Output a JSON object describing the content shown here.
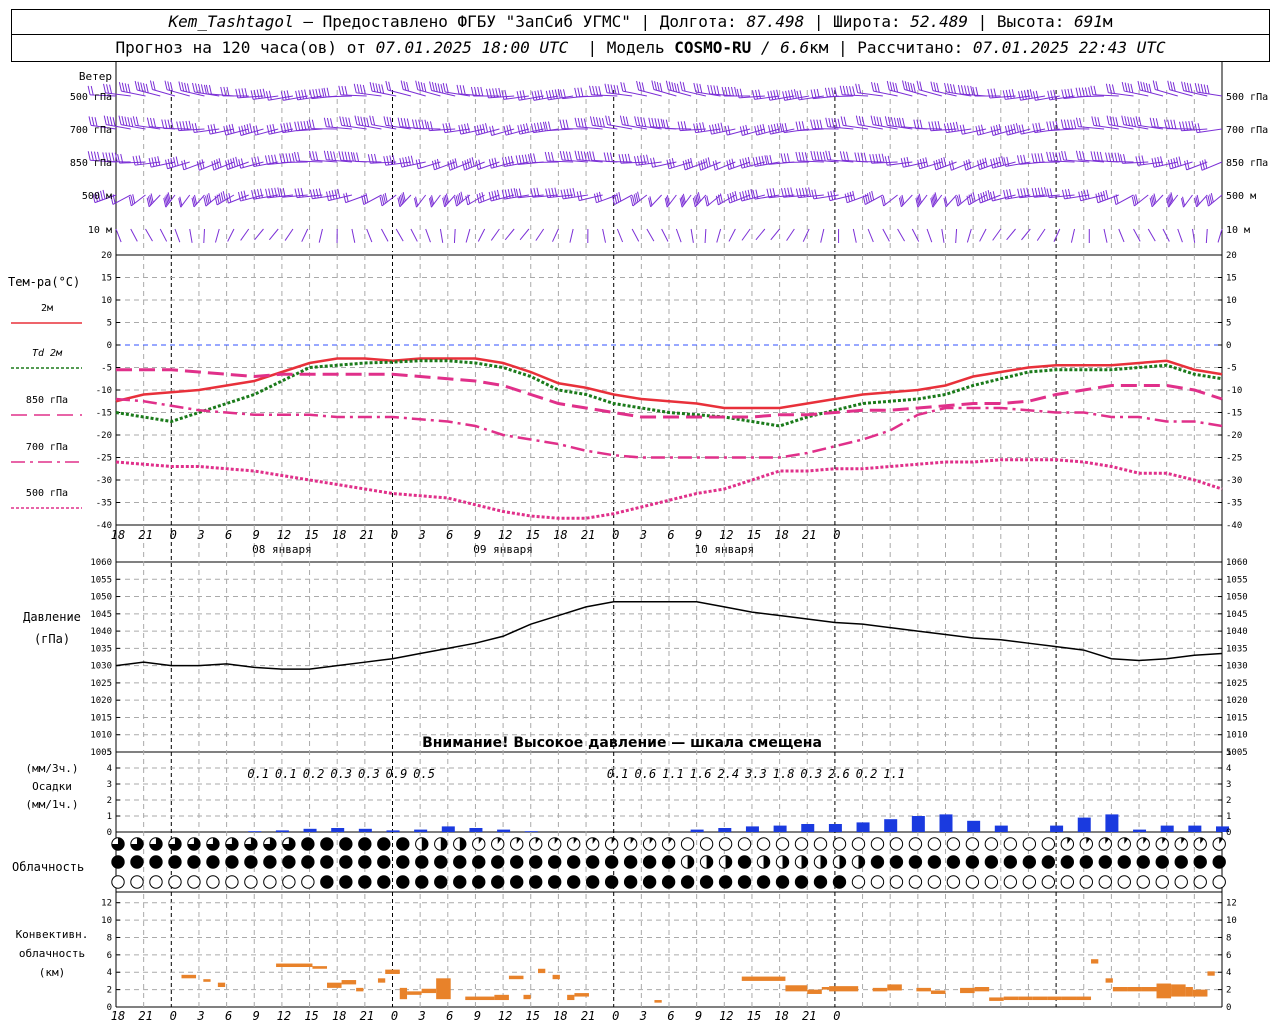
{
  "header": {
    "station": "Kem_Tashtagol",
    "provider": " — Предоставлено ФГБУ \"ЗапСиб УГМС\" | Долгота: ",
    "lon": "87.498",
    "lat_label": " | Широта: ",
    "lat": "52.489",
    "alt_label": " | Высота: ",
    "alt": "691",
    "alt_unit": "м",
    "forecast_label": "Прогноз на 120 часа(ов) от ",
    "forecast_start": "07.01.2025 18:00 UTC",
    "model_label": "  | Модель ",
    "model": "COSMO-RU",
    "resolution": " / 6.6",
    "res_unit": "км",
    "calc_label": " | Рассчитано: ",
    "calc_time": "07.01.2025 22:43 UTC"
  },
  "colors": {
    "wind": "#7b2fd6",
    "temp2m": "#e8303a",
    "td2m": "#1a7a1a",
    "t850": "#e0308a",
    "t700": "#e0308a",
    "t500": "#e0308a",
    "pressure": "#000000",
    "precip": "#1a3adf",
    "conv": "#e8822a",
    "grid": "#aaaaaa",
    "zero_line": "#3050ff"
  },
  "labels": {
    "wind_title": "Ветер",
    "wind_levels": [
      "500 гПа",
      "700 гПа",
      "850 гПа",
      "500 м",
      "10 м"
    ],
    "temp_title": "Тем-ра(°C)",
    "temp_legend": [
      "2м",
      "Td 2м",
      "850 гПа",
      "700 гПа",
      "500 гПа"
    ],
    "pressure_title": "Давление",
    "pressure_unit": "(гПа)",
    "pressure_warning": "Внимание! Высокое давление — шкала смещена",
    "precip_unit3": "(мм/3ч.)",
    "precip_title": "Осадки",
    "precip_unit1": "(мм/1ч.)",
    "cloud_title": "Облачность",
    "conv_title1": "Конвективн.",
    "conv_title2": "облачность",
    "conv_unit": "(км)"
  },
  "time_ticks": [
    "18",
    "21",
    "0",
    "3",
    "6",
    "9",
    "12",
    "15",
    "18",
    "21",
    "0",
    "3",
    "6",
    "9",
    "12",
    "15",
    "18",
    "21",
    "0",
    "3",
    "6",
    "9",
    "12",
    "15",
    "18",
    "21",
    "0"
  ],
  "day_labels": [
    "08 января",
    "09 января",
    "10 января"
  ],
  "precip_3h_totals": [
    "0.1",
    "0.1",
    "0.2",
    "0.3",
    "0.3",
    "0.9",
    "0.5",
    "",
    "",
    "",
    "",
    "",
    "",
    "0.1",
    "0.6",
    "1.1",
    "1.6",
    "2.4",
    "3.3",
    "1.8",
    "0.3",
    "2.6",
    "0.2",
    "1.1"
  ],
  "chart_data": [
    {
      "type": "line",
      "title": "Тем-ра(°C)",
      "ylim": [
        -40,
        20
      ],
      "x_hours": [
        0,
        3,
        6,
        9,
        12,
        15,
        18,
        21,
        24,
        27,
        30,
        33,
        36,
        39,
        42,
        45,
        48,
        51,
        54,
        57,
        60,
        63,
        66,
        69,
        72,
        75,
        78,
        81,
        84,
        87,
        90,
        93,
        96,
        99,
        102,
        105,
        108,
        111,
        114,
        117,
        120
      ],
      "series": [
        {
          "name": "2м",
          "values": [
            -12.5,
            -11,
            -10.5,
            -10,
            -9,
            -8,
            -6,
            -4,
            -3,
            -3,
            -3.5,
            -3,
            -3,
            -3,
            -4,
            -6,
            -8.5,
            -9.5,
            -11,
            -12,
            -12.5,
            -13,
            -14,
            -14,
            -14,
            -13,
            -12,
            -11,
            -10.5,
            -10,
            -9,
            -7,
            -6,
            -5,
            -4.5,
            -4.5,
            -4.5,
            -4,
            -3.5,
            -5.5,
            -6.5
          ]
        },
        {
          "name": "Td 2м",
          "values": [
            -15,
            -16,
            -17,
            -15,
            -13,
            -11,
            -8,
            -5,
            -4.5,
            -4,
            -3.8,
            -3.5,
            -3.5,
            -4,
            -5,
            -7,
            -10,
            -11,
            -13,
            -14,
            -15,
            -15.5,
            -16,
            -17,
            -18,
            -16,
            -14.5,
            -13,
            -12.5,
            -12,
            -11,
            -9,
            -7.5,
            -6,
            -5.5,
            -5.5,
            -5.5,
            -5,
            -4.5,
            -6.5,
            -7.5
          ]
        },
        {
          "name": "850 гПа",
          "values": [
            -5.5,
            -5.5,
            -5.5,
            -6,
            -6.5,
            -7,
            -6.5,
            -6.5,
            -6.5,
            -6.5,
            -6.5,
            -7,
            -7.5,
            -8,
            -9,
            -11,
            -13,
            -14,
            -15,
            -16,
            -16,
            -16,
            -16,
            -16,
            -15.5,
            -15.5,
            -15,
            -14.5,
            -14.5,
            -14,
            -13.5,
            -13,
            -13,
            -12.5,
            -11,
            -10,
            -9,
            -9,
            -9,
            -10,
            -12
          ]
        },
        {
          "name": "700 гПа",
          "values": [
            -12,
            -12.5,
            -13.5,
            -14.5,
            -15,
            -15.5,
            -15.5,
            -15.5,
            -16,
            -16,
            -16,
            -16.5,
            -17,
            -18,
            -20,
            -21,
            -22,
            -23.5,
            -24.5,
            -25,
            -25,
            -25,
            -25,
            -25,
            -25,
            -24,
            -22.5,
            -21,
            -19,
            -15.5,
            -14,
            -14,
            -14,
            -14.5,
            -15,
            -15,
            -16,
            -16,
            -17,
            -17,
            -18
          ]
        },
        {
          "name": "500 гПа",
          "values": [
            -26,
            -26.5,
            -27,
            -27,
            -27.5,
            -28,
            -29,
            -30,
            -31,
            -32,
            -33,
            -33.5,
            -34,
            -35.5,
            -37,
            -38,
            -38.5,
            -38.5,
            -37.5,
            -36,
            -34.5,
            -33,
            -32,
            -30,
            -28,
            -28,
            -27.5,
            -27.5,
            -27,
            -26.5,
            -26,
            -26,
            -25.5,
            -25.5,
            -25.5,
            -26,
            -27,
            -28.5,
            -28.5,
            -30,
            -32
          ]
        }
      ]
    },
    {
      "type": "line",
      "title": "Давление",
      "ylabel": "(гПа)",
      "ylim": [
        1005,
        1060
      ],
      "x_hours": [
        0,
        3,
        6,
        9,
        12,
        15,
        18,
        21,
        24,
        27,
        30,
        33,
        36,
        39,
        42,
        45,
        48,
        51,
        54,
        57,
        60,
        63,
        66,
        69,
        72,
        75,
        78,
        81,
        84,
        87,
        90,
        93,
        96,
        99,
        102,
        105,
        108,
        111,
        114,
        117,
        120
      ],
      "series": [
        {
          "name": "Давление",
          "values": [
            1030,
            1031,
            1030,
            1030,
            1030.5,
            1029.5,
            1029,
            1029,
            1030,
            1031,
            1032,
            1033.5,
            1035,
            1036.5,
            1038.5,
            1042,
            1044.5,
            1047,
            1048.5,
            1048.5,
            1048.5,
            1048.5,
            1047,
            1045.5,
            1044.5,
            1043.5,
            1042.5,
            1042,
            1041,
            1040,
            1039,
            1038,
            1037.5,
            1036.5,
            1035.5,
            1034.5,
            1032,
            1031.5,
            1032,
            1033,
            1033.5
          ]
        }
      ]
    },
    {
      "type": "bar",
      "title": "Осадки",
      "ylabel": "(мм/1ч.)",
      "ylim": [
        0,
        5
      ],
      "x_hours": [
        15,
        18,
        21,
        24,
        27,
        30,
        33,
        36,
        39,
        42,
        45,
        48,
        51,
        54,
        57,
        60,
        63,
        66,
        69,
        72,
        75,
        78,
        81,
        84,
        87,
        90,
        93,
        96,
        99,
        102,
        105,
        108,
        111,
        114,
        117,
        120
      ],
      "values": [
        0.05,
        0.1,
        0.2,
        0.25,
        0.2,
        0.1,
        0.15,
        0.35,
        0.25,
        0.15,
        0.05,
        0,
        0,
        0,
        0,
        0,
        0.15,
        0.25,
        0.35,
        0.4,
        0.5,
        0.5,
        0.6,
        0.8,
        1.0,
        1.1,
        0.7,
        0.4,
        0,
        0.4,
        0.9,
        1.1,
        0.15,
        0.4,
        0.4,
        0.35
      ]
    },
    {
      "type": "bar",
      "title": "Конвективн. облачность",
      "ylabel": "(км)",
      "ylim": [
        0,
        13
      ],
      "segments": [
        [
          9,
          11,
          3.3,
          3.7
        ],
        [
          12,
          13,
          2.9,
          3.2
        ],
        [
          14,
          15,
          2.3,
          2.8
        ],
        [
          22,
          27,
          4.6,
          5.0
        ],
        [
          27,
          29,
          4.4,
          4.7
        ],
        [
          29,
          31,
          2.2,
          2.8
        ],
        [
          31,
          33,
          2.6,
          3.1
        ],
        [
          33,
          34,
          1.8,
          2.2
        ],
        [
          36,
          37,
          2.8,
          3.3
        ],
        [
          37,
          39,
          3.8,
          4.3
        ],
        [
          39,
          40,
          0.9,
          2.2
        ],
        [
          40,
          42,
          1.4,
          1.8
        ],
        [
          42,
          44,
          1.6,
          2.1
        ],
        [
          44,
          46,
          0.9,
          3.3
        ],
        [
          48,
          52,
          0.8,
          1.2
        ],
        [
          52,
          54,
          0.8,
          1.4
        ],
        [
          54,
          56,
          3.2,
          3.6
        ],
        [
          56,
          57,
          0.9,
          1.4
        ],
        [
          58,
          59,
          3.9,
          4.4
        ],
        [
          60,
          61,
          3.2,
          3.7
        ],
        [
          62,
          63,
          0.8,
          1.4
        ],
        [
          63,
          65,
          1.2,
          1.6
        ],
        [
          74,
          75,
          0.5,
          0.8
        ],
        [
          86,
          92,
          3.0,
          3.5
        ],
        [
          92,
          95,
          1.8,
          2.5
        ],
        [
          95,
          97,
          1.5,
          2.0
        ],
        [
          97,
          98,
          2.0,
          2.3
        ],
        [
          98,
          102,
          1.8,
          2.4
        ],
        [
          104,
          106,
          1.8,
          2.2
        ],
        [
          106,
          108,
          1.9,
          2.6
        ],
        [
          110,
          112,
          1.8,
          2.2
        ],
        [
          112,
          114,
          1.5,
          1.9
        ],
        [
          116,
          118,
          1.6,
          2.2
        ],
        [
          118,
          120,
          1.8,
          2.3
        ],
        [
          120,
          122,
          0.7,
          1.1
        ],
        [
          122,
          124,
          0.8,
          1.2
        ],
        [
          124,
          126,
          0.8,
          1.2
        ],
        [
          126,
          128,
          0.8,
          1.2
        ],
        [
          128,
          130,
          0.8,
          1.2
        ],
        [
          130,
          132,
          0.8,
          1.2
        ],
        [
          132,
          134,
          0.8,
          1.2
        ],
        [
          134,
          135,
          5.0,
          5.5
        ],
        [
          136,
          137,
          2.8,
          3.3
        ],
        [
          137,
          139,
          1.8,
          2.3
        ],
        [
          139,
          141,
          1.8,
          2.3
        ],
        [
          141,
          143,
          1.8,
          2.3
        ],
        [
          143,
          145,
          1.0,
          2.7
        ],
        [
          145,
          147,
          1.2,
          2.6
        ],
        [
          147,
          148,
          1.2,
          2.3
        ],
        [
          148,
          150,
          1.2,
          2.0
        ],
        [
          150,
          151,
          3.6,
          4.1
        ]
      ]
    }
  ]
}
